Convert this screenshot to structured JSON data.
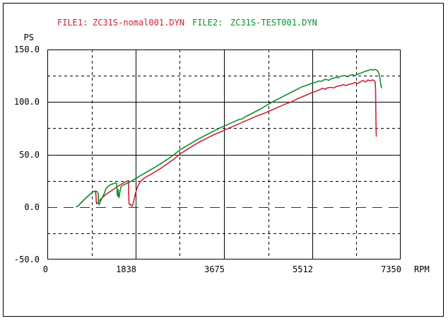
{
  "header": {
    "file1_label": "FILE1:",
    "file1_name": "ZC31S-nomal001.DYN",
    "file2_label": "FILE2:",
    "file2_name": "ZC31S-TEST001.DYN"
  },
  "colors": {
    "file1": "#cc2233",
    "file2": "#0a8f2e",
    "zero_line": "#2222aa",
    "grid": "#000000",
    "background": "#ffffff"
  },
  "chart_data": {
    "type": "line",
    "title": "",
    "xlabel": "RPM",
    "ylabel": "PS",
    "xlim": [
      0,
      7350
    ],
    "ylim": [
      -50,
      150
    ],
    "grid": true,
    "x_ticks": [
      {
        "value": 0,
        "label": "0"
      },
      {
        "value": 1838,
        "label": "1838"
      },
      {
        "value": 3675,
        "label": "3675"
      },
      {
        "value": 5512,
        "label": "5512"
      },
      {
        "value": 7350,
        "label": "7350"
      }
    ],
    "x_minor_dashed": [
      919,
      2756,
      4594,
      6431
    ],
    "y_ticks": [
      {
        "value": 150,
        "label": "150.0"
      },
      {
        "value": 100,
        "label": "100.0"
      },
      {
        "value": 50,
        "label": "50.0"
      },
      {
        "value": 0,
        "label": "0.0"
      },
      {
        "value": -50,
        "label": "-50.0"
      }
    ],
    "y_solid": [
      100,
      50
    ],
    "y_dashed": [
      125,
      75,
      25,
      -25
    ],
    "zero_line_y": 0,
    "series": [
      {
        "name": "ZC31S-nomal001.DYN",
        "color": "#cc2233",
        "points": [
          [
            600,
            0
          ],
          [
            650,
            1.5
          ],
          [
            700,
            4
          ],
          [
            800,
            8.5
          ],
          [
            900,
            12.5
          ],
          [
            950,
            14.5
          ],
          [
            985,
            15
          ],
          [
            1000,
            14.5
          ],
          [
            1010,
            12
          ],
          [
            1018,
            4.5
          ],
          [
            1028,
            3
          ],
          [
            1045,
            4
          ],
          [
            1070,
            5.5
          ],
          [
            1110,
            7.5
          ],
          [
            1160,
            9.5
          ],
          [
            1220,
            12
          ],
          [
            1300,
            14.5
          ],
          [
            1380,
            17
          ],
          [
            1450,
            19
          ],
          [
            1530,
            21.5
          ],
          [
            1600,
            23.3
          ],
          [
            1660,
            24.6
          ],
          [
            1688,
            25.2
          ],
          [
            1693,
            12
          ],
          [
            1700,
            3.5
          ],
          [
            1715,
            2.2
          ],
          [
            1730,
            2.6
          ],
          [
            1745,
            1.2
          ],
          [
            1762,
            0.8
          ],
          [
            1778,
            2.5
          ],
          [
            1795,
            5.5
          ],
          [
            1815,
            9.5
          ],
          [
            1840,
            14
          ],
          [
            1865,
            18
          ],
          [
            1895,
            21
          ],
          [
            1925,
            23.5
          ],
          [
            1960,
            25.5
          ],
          [
            2000,
            27
          ],
          [
            2060,
            28.8
          ],
          [
            2150,
            31
          ],
          [
            2250,
            33.8
          ],
          [
            2350,
            36.5
          ],
          [
            2460,
            40
          ],
          [
            2570,
            43.5
          ],
          [
            2660,
            46.5
          ],
          [
            2760,
            50.5
          ],
          [
            2880,
            54
          ],
          [
            3000,
            57.5
          ],
          [
            3150,
            61.5
          ],
          [
            3300,
            65
          ],
          [
            3450,
            68.5
          ],
          [
            3600,
            71.5
          ],
          [
            3680,
            73
          ],
          [
            3760,
            74.8
          ],
          [
            3900,
            77.5
          ],
          [
            4050,
            80.5
          ],
          [
            4200,
            83.5
          ],
          [
            4350,
            86.5
          ],
          [
            4500,
            89
          ],
          [
            4650,
            92
          ],
          [
            4800,
            95
          ],
          [
            4950,
            98
          ],
          [
            5070,
            100
          ],
          [
            5200,
            103
          ],
          [
            5350,
            105.8
          ],
          [
            5512,
            109
          ],
          [
            5600,
            110.5
          ],
          [
            5680,
            112
          ],
          [
            5730,
            113
          ],
          [
            5780,
            112
          ],
          [
            5830,
            113.5
          ],
          [
            5900,
            114
          ],
          [
            5960,
            113.4
          ],
          [
            6020,
            115
          ],
          [
            6100,
            115.5
          ],
          [
            6160,
            116.6
          ],
          [
            6220,
            115.6
          ],
          [
            6280,
            117
          ],
          [
            6350,
            117.5
          ],
          [
            6400,
            118.6
          ],
          [
            6460,
            117.6
          ],
          [
            6520,
            119.5
          ],
          [
            6570,
            120.5
          ],
          [
            6620,
            119
          ],
          [
            6670,
            121
          ],
          [
            6720,
            120
          ],
          [
            6760,
            121
          ],
          [
            6800,
            120.5
          ],
          [
            6820,
            119
          ],
          [
            6828,
            112
          ],
          [
            6833,
            95
          ],
          [
            6837,
            80
          ],
          [
            6841,
            70
          ],
          [
            6845,
            67
          ]
        ]
      },
      {
        "name": "ZC31S-TEST001.DYN",
        "color": "#0a8f2e",
        "points": [
          [
            600,
            0
          ],
          [
            650,
            1.5
          ],
          [
            700,
            4
          ],
          [
            800,
            8.5
          ],
          [
            900,
            12.5
          ],
          [
            950,
            14.5
          ],
          [
            990,
            15.2
          ],
          [
            1020,
            15
          ],
          [
            1045,
            14
          ],
          [
            1058,
            12.5
          ],
          [
            1066,
            4
          ],
          [
            1078,
            2.2
          ],
          [
            1090,
            3.2
          ],
          [
            1115,
            6.5
          ],
          [
            1150,
            9.5
          ],
          [
            1185,
            13
          ],
          [
            1220,
            17.5
          ],
          [
            1270,
            19.8
          ],
          [
            1320,
            21.3
          ],
          [
            1380,
            22.4
          ],
          [
            1420,
            23
          ],
          [
            1442,
            22.6
          ],
          [
            1452,
            13
          ],
          [
            1460,
            10.5
          ],
          [
            1468,
            14
          ],
          [
            1474,
            16.5
          ],
          [
            1482,
            10.2
          ],
          [
            1492,
            9
          ],
          [
            1502,
            12
          ],
          [
            1515,
            16
          ],
          [
            1532,
            19
          ],
          [
            1560,
            20.3
          ],
          [
            1600,
            21.3
          ],
          [
            1650,
            22.3
          ],
          [
            1700,
            23.4
          ],
          [
            1760,
            25
          ],
          [
            1800,
            26
          ],
          [
            1840,
            27.2
          ],
          [
            1910,
            29.2
          ],
          [
            2000,
            31.6
          ],
          [
            2100,
            34.2
          ],
          [
            2200,
            36.8
          ],
          [
            2300,
            39.6
          ],
          [
            2400,
            42.5
          ],
          [
            2520,
            46
          ],
          [
            2640,
            50
          ],
          [
            2760,
            54.5
          ],
          [
            2880,
            57.8
          ],
          [
            3000,
            61
          ],
          [
            3150,
            65
          ],
          [
            3300,
            68.5
          ],
          [
            3450,
            72
          ],
          [
            3600,
            75.5
          ],
          [
            3750,
            78.5
          ],
          [
            3900,
            81.5
          ],
          [
            3990,
            83.3
          ],
          [
            4060,
            84
          ],
          [
            4120,
            86
          ],
          [
            4250,
            89
          ],
          [
            4400,
            92.5
          ],
          [
            4550,
            96.5
          ],
          [
            4700,
            100.5
          ],
          [
            4850,
            104
          ],
          [
            5000,
            107.5
          ],
          [
            5150,
            111
          ],
          [
            5300,
            114.5
          ],
          [
            5400,
            116
          ],
          [
            5512,
            118
          ],
          [
            5600,
            119
          ],
          [
            5650,
            120
          ],
          [
            5700,
            119.6
          ],
          [
            5750,
            121
          ],
          [
            5800,
            121.6
          ],
          [
            5850,
            120.6
          ],
          [
            5900,
            122
          ],
          [
            6000,
            123.5
          ],
          [
            6050,
            123
          ],
          [
            6100,
            124.6
          ],
          [
            6200,
            125
          ],
          [
            6250,
            124
          ],
          [
            6300,
            125.5
          ],
          [
            6350,
            126
          ],
          [
            6400,
            125
          ],
          [
            6440,
            126.2
          ],
          [
            6480,
            127
          ],
          [
            6530,
            127.6
          ],
          [
            6580,
            128.6
          ],
          [
            6630,
            129.5
          ],
          [
            6680,
            130
          ],
          [
            6730,
            131
          ],
          [
            6770,
            130.4
          ],
          [
            6810,
            131
          ],
          [
            6850,
            130.4
          ],
          [
            6880,
            129
          ],
          [
            6900,
            127
          ],
          [
            6920,
            122
          ],
          [
            6940,
            116
          ],
          [
            6955,
            113
          ]
        ]
      }
    ]
  }
}
